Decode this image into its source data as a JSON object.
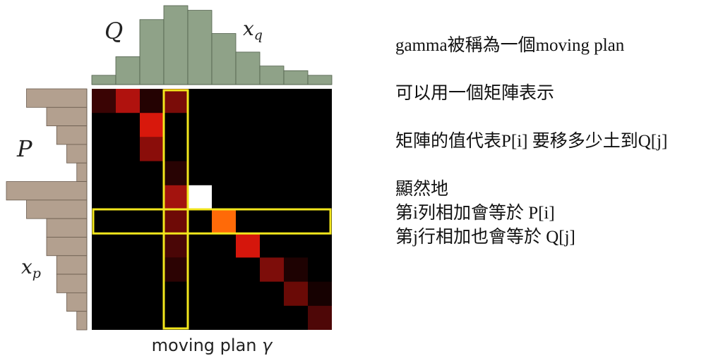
{
  "figure": {
    "q_label": "Q",
    "xq_label": "x",
    "xq_sub": "q",
    "p_label": "P",
    "xp_label": "x",
    "xp_sub": "p",
    "caption_text": "moving plan ",
    "caption_symbol": "γ",
    "colors": {
      "top_hist": "#8fa288",
      "left_hist": "#b3a08f",
      "matrix_bg": "#000000",
      "highlight": "#f2e61c"
    }
  },
  "chart_data": {
    "type": "heatmap",
    "q_histogram": [
      2,
      6,
      14,
      17,
      16,
      11,
      7,
      4,
      3,
      2
    ],
    "p_histogram": [
      6,
      4,
      3,
      2,
      1,
      8,
      6,
      4,
      4,
      3,
      3,
      2,
      1
    ],
    "matrix_cells": [
      {
        "row": 0,
        "col": 0,
        "color": "#3a0404"
      },
      {
        "row": 0,
        "col": 1,
        "color": "#b0120e"
      },
      {
        "row": 0,
        "col": 2,
        "color": "#240202"
      },
      {
        "row": 0,
        "col": 3,
        "color": "#7a0c08"
      },
      {
        "row": 1,
        "col": 2,
        "color": "#d8180c"
      },
      {
        "row": 2,
        "col": 2,
        "color": "#8a0d0a"
      },
      {
        "row": 3,
        "col": 3,
        "color": "#280303"
      },
      {
        "row": 4,
        "col": 3,
        "color": "#a3130e"
      },
      {
        "row": 4,
        "col": 4,
        "color": "#ffffff"
      },
      {
        "row": 5,
        "col": 3,
        "color": "#6e0a06"
      },
      {
        "row": 5,
        "col": 5,
        "color": "#ff6a08"
      },
      {
        "row": 6,
        "col": 3,
        "color": "#4a0606"
      },
      {
        "row": 6,
        "col": 6,
        "color": "#d5160c"
      },
      {
        "row": 7,
        "col": 3,
        "color": "#2c0303"
      },
      {
        "row": 7,
        "col": 7,
        "color": "#7d0d0a"
      },
      {
        "row": 7,
        "col": 8,
        "color": "#1e0202"
      },
      {
        "row": 8,
        "col": 8,
        "color": "#6a0a06"
      },
      {
        "row": 8,
        "col": 9,
        "color": "#160101"
      },
      {
        "row": 9,
        "col": 9,
        "color": "#4e0707"
      }
    ],
    "highlight_column": 3,
    "highlight_row": 5
  },
  "notes": {
    "line1": "gamma被稱為一個moving plan",
    "line2": "可以用一個矩陣表示",
    "line3": "矩陣的值代表P[i] 要移多少土到Q[j]",
    "line4": "顯然地",
    "line5": "第i列相加會等於 P[i]",
    "line6": "第j行相加也會等於 Q[j]"
  }
}
